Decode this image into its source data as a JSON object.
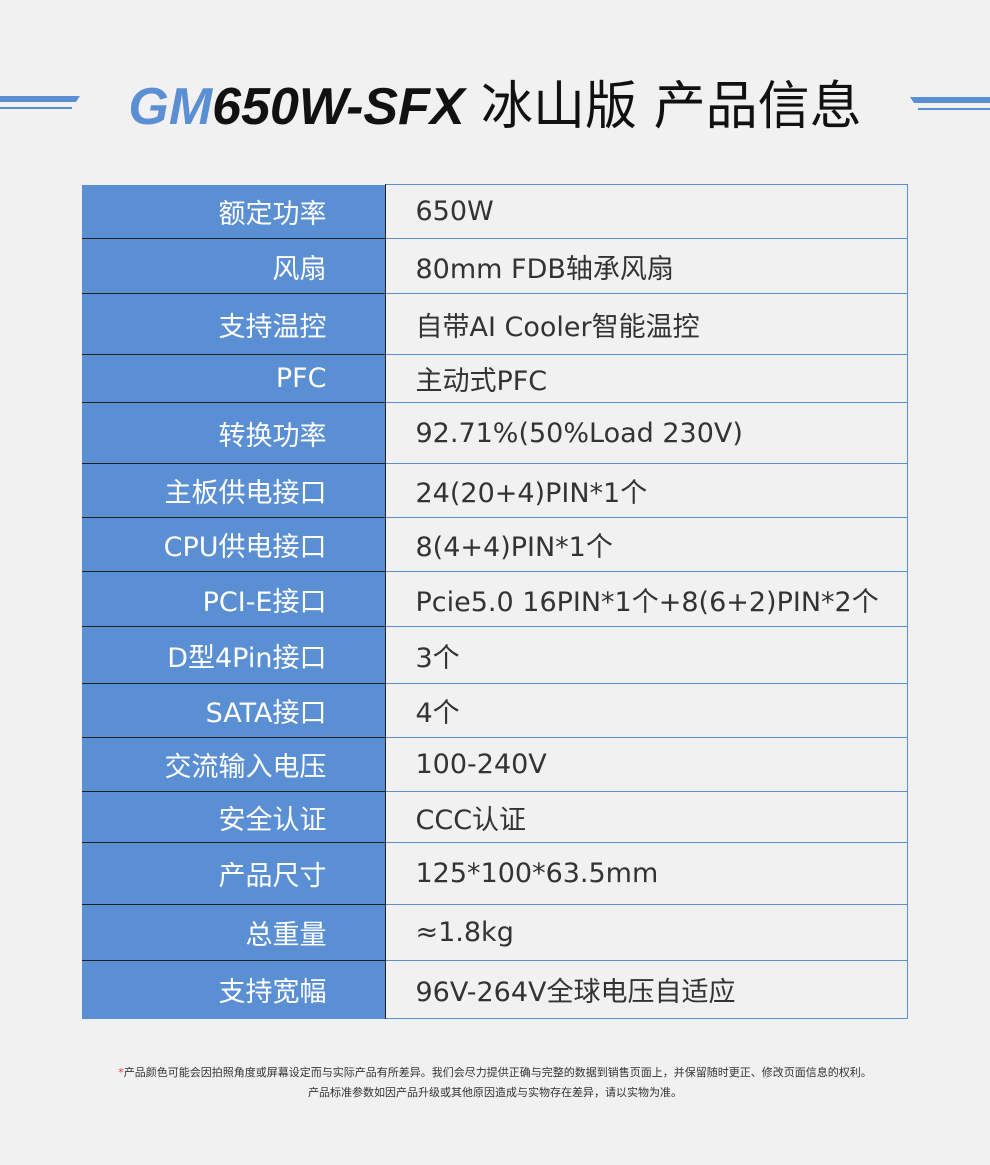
{
  "header": {
    "model_prefix": "GM",
    "model_rest": "650W-SFX",
    "edition": "冰山版",
    "heading": "产品信息",
    "accent": "#5b8fd4"
  },
  "specs": [
    {
      "label": "额定功率",
      "value": "650W"
    },
    {
      "label": "风扇",
      "value": "80mm FDB轴承风扇"
    },
    {
      "label": "支持温控",
      "value": "自带AI Cooler智能温控"
    },
    {
      "label": "PFC",
      "value": "主动式PFC"
    },
    {
      "label": "转换功率",
      "value": "92.71%(50%Load 230V)"
    },
    {
      "label": "主板供电接口",
      "value": "24(20+4)PIN*1个"
    },
    {
      "label": "CPU供电接口",
      "value": "8(4+4)PIN*1个"
    },
    {
      "label": "PCI-E接口",
      "value": "Pcie5.0 16PIN*1个+8(6+2)PIN*2个"
    },
    {
      "label": "D型4Pin接口",
      "value": "3个"
    },
    {
      "label": "SATA接口",
      "value": "4个"
    },
    {
      "label": "交流输入电压",
      "value": "100-240V"
    },
    {
      "label": "安全认证",
      "value": "CCC认证"
    },
    {
      "label": "产品尺寸",
      "value": "125*100*63.5mm"
    },
    {
      "label": "总重量",
      "value": "≈1.8kg"
    },
    {
      "label": "支持宽幅",
      "value": "96V-264V全球电压自适应"
    }
  ],
  "footnote": {
    "star": "*",
    "line1": "产品颜色可能会因拍照角度或屏幕设定而与实际产品有所差异。我们会尽力提供正确与完整的数据到销售页面上，并保留随时更正、修改页面信息的权利。",
    "line2": "产品标准参数如因产品升级或其他原因造成与实物存在差异，请以实物为准。"
  }
}
